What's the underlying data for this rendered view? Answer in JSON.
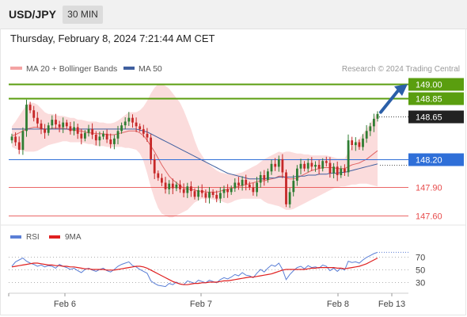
{
  "header": {
    "symbol": "USD/JPY",
    "timeframe": "30 MIN",
    "datetime": "Thursday, February 8, 2024 7:21:44 AM CET"
  },
  "legend": {
    "ma20": "MA 20 + Bollinger Bands",
    "ma50": "MA 50",
    "credit": "Research © 2024 Trading Central"
  },
  "rsi_legend": {
    "rsi": "RSI",
    "ma9": "9MA"
  },
  "colors": {
    "up": "#2e7d32",
    "down": "#c62828",
    "bollinger_fill": "#f9c9c9",
    "ma20": "#e06666",
    "ma50": "#3f5f9f",
    "target": "#5a9e0f",
    "pivot": "#2f6fd8",
    "support": "#e74c4c",
    "last_price": "#222222",
    "arrow": "#2b5fa8",
    "rsi": "#5b7fd6",
    "rsi_ma": "#e02020"
  },
  "icons": {
    "arrow": "arrow-up-right-icon"
  },
  "chart_data": {
    "type": "candlestick",
    "y_range": [
      147.5,
      149.05
    ],
    "levels": [
      {
        "name": "target-2",
        "value": 149.0,
        "label": "149.00",
        "style": "target"
      },
      {
        "name": "target-1",
        "value": 148.85,
        "label": "148.85",
        "style": "target"
      },
      {
        "name": "last-price",
        "value": 148.65,
        "label": "148.65",
        "style": "last"
      },
      {
        "name": "pivot",
        "value": 148.2,
        "label": "148.20",
        "style": "pivot"
      },
      {
        "name": "support-1",
        "value": 147.9,
        "label": "147.90",
        "style": "support"
      },
      {
        "name": "support-2",
        "value": 147.6,
        "label": "147.60",
        "style": "support"
      }
    ],
    "x_ticks": [
      "Feb 6",
      "Feb 7",
      "Feb 8",
      "Feb 13"
    ],
    "closes": [
      148.44,
      148.38,
      148.3,
      148.5,
      148.78,
      148.72,
      148.64,
      148.58,
      148.52,
      148.48,
      148.56,
      148.62,
      148.57,
      148.54,
      148.59,
      148.55,
      148.5,
      148.54,
      148.47,
      148.42,
      148.48,
      148.52,
      148.46,
      148.4,
      148.44,
      148.47,
      148.41,
      148.36,
      148.42,
      148.5,
      148.56,
      148.6,
      148.64,
      148.59,
      148.55,
      148.52,
      148.47,
      148.43,
      148.2,
      148.05,
      148.0,
      147.95,
      147.88,
      147.94,
      147.89,
      147.93,
      147.88,
      147.84,
      147.91,
      147.86,
      147.8,
      147.87,
      147.84,
      147.79,
      147.85,
      147.82,
      147.78,
      147.84,
      147.88,
      147.85,
      147.89,
      147.95,
      147.92,
      147.98,
      147.93,
      147.9,
      147.85,
      147.95,
      148.03,
      147.98,
      148.07,
      148.15,
      148.12,
      148.2,
      148.06,
      147.72,
      147.85,
      147.97,
      148.1,
      148.15,
      148.1,
      148.16,
      148.12,
      148.14,
      148.1,
      148.18,
      148.16,
      148.05,
      148.12,
      148.03,
      148.1,
      148.06,
      148.4,
      148.35,
      148.38,
      148.33,
      148.42,
      148.5,
      148.55,
      148.63,
      148.68
    ],
    "ma20": [
      148.45,
      148.46,
      148.48,
      148.5,
      148.52,
      148.53,
      148.54,
      148.54,
      148.53,
      148.52,
      148.52,
      148.53,
      148.53,
      148.53,
      148.53,
      148.52,
      148.51,
      148.51,
      148.5,
      148.5,
      148.49,
      148.48,
      148.48,
      148.47,
      148.47,
      148.47,
      148.46,
      148.46,
      148.46,
      148.47,
      148.48,
      148.49,
      148.5,
      148.5,
      148.5,
      148.48,
      148.45,
      148.4,
      148.34,
      148.28,
      148.21,
      148.14,
      148.08,
      148.02,
      147.98,
      147.95,
      147.92,
      147.89,
      147.88,
      147.88,
      147.87,
      147.86,
      147.86,
      147.85,
      147.85,
      147.85,
      147.85,
      147.86,
      147.87,
      147.88,
      147.89,
      147.9,
      147.91,
      147.92,
      147.93,
      147.94,
      147.95,
      147.96,
      147.97,
      147.97,
      147.98,
      147.99,
      148.0,
      148.02,
      148.02,
      148.0,
      147.99,
      147.99,
      148.0,
      148.02,
      148.04,
      148.06,
      148.08,
      148.09,
      148.1,
      148.11,
      148.11,
      148.11,
      148.11,
      148.1,
      148.1,
      148.1,
      148.12,
      148.14,
      148.15,
      148.16,
      148.18,
      148.2,
      148.23,
      148.26,
      148.29
    ],
    "ma50": [
      148.52,
      148.52,
      148.52,
      148.52,
      148.52,
      148.52,
      148.52,
      148.52,
      148.52,
      148.52,
      148.52,
      148.52,
      148.52,
      148.52,
      148.52,
      148.52,
      148.52,
      148.52,
      148.52,
      148.52,
      148.52,
      148.52,
      148.52,
      148.52,
      148.52,
      148.52,
      148.52,
      148.52,
      148.52,
      148.52,
      148.52,
      148.52,
      148.52,
      148.52,
      148.52,
      148.51,
      148.5,
      148.49,
      148.47,
      148.45,
      148.43,
      148.41,
      148.39,
      148.37,
      148.35,
      148.33,
      148.31,
      148.29,
      148.27,
      148.25,
      148.23,
      148.21,
      148.19,
      148.17,
      148.15,
      148.13,
      148.11,
      148.09,
      148.07,
      148.05,
      148.04,
      148.03,
      148.02,
      148.01,
      148.0,
      147.99,
      147.99,
      147.99,
      147.99,
      147.99,
      148.0,
      148.0,
      148.0,
      148.01,
      148.01,
      148.01,
      148.01,
      148.01,
      148.02,
      148.02,
      148.02,
      148.03,
      148.03,
      148.03,
      148.04,
      148.04,
      148.04,
      148.05,
      148.05,
      148.05,
      148.06,
      148.06,
      148.07,
      148.08,
      148.09,
      148.1,
      148.11,
      148.12,
      148.13,
      148.14,
      148.15
    ],
    "bb_upper": [
      148.55,
      148.6,
      148.66,
      148.72,
      148.78,
      148.8,
      148.8,
      148.78,
      148.74,
      148.7,
      148.68,
      148.68,
      148.67,
      148.66,
      148.66,
      148.65,
      148.64,
      148.64,
      148.62,
      148.62,
      148.61,
      148.6,
      148.6,
      148.6,
      148.59,
      148.59,
      148.58,
      148.58,
      148.59,
      148.61,
      148.64,
      148.67,
      148.7,
      148.7,
      148.7,
      148.72,
      148.76,
      148.82,
      148.9,
      148.96,
      149.0,
      149.0,
      148.98,
      148.95,
      148.9,
      148.85,
      148.8,
      148.72,
      148.62,
      148.52,
      148.4,
      148.3,
      148.24,
      148.18,
      148.14,
      148.11,
      148.08,
      148.06,
      148.05,
      148.04,
      148.04,
      148.04,
      148.05,
      148.06,
      148.08,
      148.1,
      148.12,
      148.14,
      148.17,
      148.2,
      148.22,
      148.24,
      148.26,
      148.28,
      148.27,
      148.28,
      148.28,
      148.27,
      148.26,
      148.26,
      148.25,
      148.25,
      148.24,
      148.24,
      148.24,
      148.24,
      148.24,
      148.23,
      148.22,
      148.21,
      148.21,
      148.21,
      148.27,
      148.33,
      148.38,
      148.42,
      148.47,
      148.52,
      148.58,
      148.64,
      148.7
    ],
    "bb_lower": [
      148.33,
      148.31,
      148.3,
      148.29,
      148.28,
      148.28,
      148.28,
      148.29,
      148.31,
      148.33,
      148.35,
      148.36,
      148.37,
      148.38,
      148.39,
      148.39,
      148.38,
      148.38,
      148.38,
      148.38,
      148.37,
      148.36,
      148.36,
      148.34,
      148.34,
      148.34,
      148.33,
      148.33,
      148.33,
      148.33,
      148.33,
      148.32,
      148.32,
      148.31,
      148.3,
      148.26,
      148.18,
      148.05,
      147.9,
      147.78,
      147.68,
      147.62,
      147.6,
      147.58,
      147.58,
      147.6,
      147.62,
      147.64,
      147.66,
      147.7,
      147.74,
      147.76,
      147.78,
      147.78,
      147.78,
      147.77,
      147.76,
      147.76,
      147.74,
      147.73,
      147.74,
      147.76,
      147.77,
      147.78,
      147.78,
      147.78,
      147.78,
      147.78,
      147.78,
      147.75,
      147.73,
      147.72,
      147.71,
      147.7,
      147.68,
      147.66,
      147.66,
      147.67,
      147.69,
      147.71,
      147.73,
      147.75,
      147.77,
      147.79,
      147.81,
      147.83,
      147.85,
      147.87,
      147.89,
      147.9,
      147.91,
      147.91,
      147.92,
      147.93,
      147.93,
      147.94,
      147.94,
      147.94,
      147.93,
      147.92,
      147.91
    ],
    "rsi": {
      "y_range": [
        15,
        85
      ],
      "ticks": [
        70,
        50,
        30
      ],
      "rsi": [
        55,
        62,
        65,
        68,
        63,
        60,
        58,
        55,
        57,
        54,
        56,
        55,
        52,
        58,
        55,
        53,
        50,
        52,
        48,
        45,
        50,
        52,
        49,
        47,
        50,
        52,
        48,
        46,
        50,
        55,
        58,
        60,
        62,
        56,
        54,
        50,
        47,
        44,
        32,
        28,
        25,
        24,
        23,
        28,
        26,
        30,
        27,
        26,
        32,
        30,
        28,
        33,
        31,
        29,
        33,
        31,
        29,
        34,
        37,
        35,
        38,
        42,
        40,
        45,
        41,
        40,
        37,
        44,
        50,
        46,
        52,
        57,
        55,
        60,
        50,
        34,
        42,
        48,
        53,
        55,
        51,
        56,
        53,
        54,
        52,
        57,
        55,
        48,
        52,
        47,
        52,
        49,
        63,
        61,
        62,
        60,
        65,
        69,
        72,
        75,
        77
      ],
      "ma9": [
        54,
        55,
        56,
        57,
        58,
        59,
        60,
        60,
        59,
        58,
        57,
        57,
        56,
        56,
        55,
        55,
        54,
        54,
        53,
        52,
        51,
        51,
        50,
        50,
        50,
        50,
        49,
        49,
        49,
        50,
        51,
        52,
        53,
        54,
        55,
        55,
        54,
        52,
        49,
        46,
        43,
        40,
        37,
        34,
        31,
        29,
        27,
        26,
        26,
        27,
        28,
        28,
        29,
        29,
        30,
        30,
        30,
        31,
        32,
        32,
        33,
        34,
        35,
        36,
        37,
        38,
        38,
        39,
        40,
        41,
        42,
        43,
        45,
        47,
        49,
        50,
        50,
        50,
        50,
        50,
        50,
        51,
        52,
        52,
        53,
        53,
        53,
        53,
        53,
        52,
        52,
        51,
        52,
        53,
        54,
        55,
        57,
        59,
        62,
        65,
        68
      ]
    }
  }
}
